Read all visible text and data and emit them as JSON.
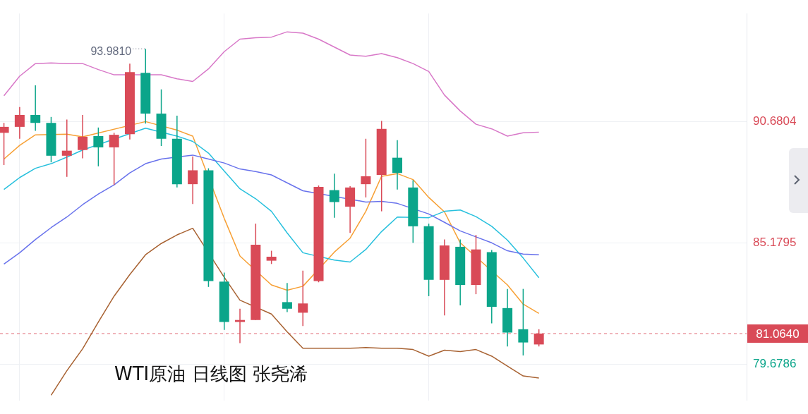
{
  "chart_data": {
    "type": "candlestick",
    "title": "WTI原油 日线图 张尧浠",
    "categories": [
      null,
      null,
      null,
      null,
      null,
      null,
      null,
      null,
      null,
      null,
      null,
      null,
      null,
      null,
      null,
      null,
      null,
      null,
      null,
      null,
      null,
      null,
      null,
      null,
      null,
      null,
      null,
      null,
      null,
      null,
      null,
      null,
      null,
      null,
      null
    ],
    "ylim": [
      78.03,
      95.58
    ],
    "yticks": [
      90.6804,
      85.1795,
      79.6786
    ],
    "grid": true,
    "series": [
      {
        "type": "line",
        "color": "#d878c8",
        "values": [
          91.85,
          92.74,
          93.31,
          93.34,
          93.31,
          93.31,
          93.04,
          92.8,
          null,
          null,
          92.8,
          92.62,
          92.5,
          93.07,
          93.85,
          94.42,
          94.48,
          94.51,
          94.75,
          94.69,
          94.42,
          94.06,
          93.7,
          93.64,
          93.76,
          93.58,
          93.31,
          92.95,
          91.88,
          91.16,
          90.56,
          90.35,
          90.02,
          90.17,
          90.2
        ]
      },
      {
        "type": "line",
        "color": "#6872ec",
        "values": [
          84.22,
          84.73,
          85.33,
          85.87,
          86.35,
          86.91,
          87.39,
          87.81,
          88.35,
          88.77,
          88.98,
          null,
          89.16,
          88.98,
          88.8,
          88.53,
          88.41,
          88.26,
          87.9,
          87.54,
          null,
          null,
          null,
          87.03,
          87.06,
          86.97,
          null,
          86.49,
          86.11,
          85.72,
          85.45,
          85.18,
          84.82,
          84.67,
          84.64
        ]
      },
      {
        "type": "line",
        "color": "#a86232",
        "values": [
          null,
          null,
          null,
          78.27,
          79.38,
          80.37,
          81.59,
          82.76,
          83.74,
          84.64,
          85.15,
          85.54,
          85.84,
          null,
          83.62,
          82.58,
          null,
          81.95,
          81.14,
          80.4,
          80.4,
          80.4,
          80.4,
          80.43,
          80.4,
          80.4,
          80.34,
          80.04,
          80.31,
          80.25,
          80.34,
          80.04,
          79.59,
          79.14,
          79.05
        ]
      },
      {
        "type": "line",
        "color": "#27c0dd",
        "values": [
          87.6,
          88.14,
          88.56,
          88.77,
          89.07,
          89.39,
          null,
          null,
          null,
          90.38,
          null,
          90.02,
          89.78,
          89.25,
          88.44,
          87.63,
          87.18,
          86.61,
          85.63,
          84.73,
          null,
          84.4,
          84.31,
          84.88,
          85.69,
          86.35,
          null,
          86.32,
          86.61,
          86.67,
          86.37,
          85.93,
          85.3,
          84.49,
          83.6
        ]
      },
      {
        "type": "line",
        "color": "#f7a035",
        "values": [
          88.98,
          89.6,
          90.08,
          null,
          90.11,
          89.99,
          null,
          null,
          null,
          90.68,
          null,
          90.29,
          90.02,
          null,
          86.29,
          84.58,
          null,
          83.27,
          83.03,
          83.21,
          null,
          84.76,
          85.39,
          86.61,
          88.2,
          88.32,
          88.05,
          87.24,
          86.58,
          85.18,
          null,
          null,
          83.27,
          82.4,
          81.98
        ]
      },
      {
        "type": "candlestick",
        "ohlc": [
          [
            90.17,
            90.62,
            88.71,
            90.44
          ],
          [
            90.44,
            91.34,
            89.9,
            90.98
          ],
          [
            90.98,
            92.32,
            90.26,
            90.62
          ],
          [
            90.62,
            90.89,
            88.83,
            89.13
          ],
          [
            89.13,
            90.77,
            88.17,
            89.36
          ],
          [
            89.39,
            90.98,
            89.01,
            89.99
          ],
          [
            90.02,
            90.41,
            88.65,
            89.51
          ],
          [
            89.51,
            90.17,
            87.81,
            90.08
          ],
          [
            90.11,
            93.31,
            89.87,
            92.92
          ],
          [
            92.89,
            93.981,
            90.59,
            91.04
          ],
          [
            91.04,
            92.14,
            89.57,
            89.9
          ],
          [
            89.9,
            90.95,
            87.69,
            87.84
          ],
          [
            87.84,
            89.1,
            86.94,
            88.47
          ],
          [
            88.47,
            88.56,
            83.18,
            83.45
          ],
          [
            83.42,
            83.83,
            81.23,
            81.59
          ],
          [
            81.59,
            82.19,
            80.63,
            81.68
          ],
          [
            81.68,
            86.05,
            81.68,
            85.09
          ],
          [
            84.37,
            84.82,
            84.22,
            84.55
          ],
          [
            82.49,
            83.36,
            82.04,
            82.19
          ],
          [
            82.01,
            83.92,
            81.41,
            82.43
          ],
          [
            83.45,
            87.78,
            83.39,
            87.72
          ],
          [
            87.57,
            88.32,
            86.32,
            87.03
          ],
          [
            86.82,
            87.75,
            85.63,
            87.69
          ],
          [
            87.84,
            89.9,
            87.24,
            88.2
          ],
          [
            88.26,
            90.71,
            86.61,
            90.35
          ],
          [
            89.04,
            89.84,
            87.6,
            88.35
          ],
          [
            87.69,
            88.02,
            85.18,
            85.93
          ],
          [
            85.93,
            86.05,
            82.76,
            83.5
          ],
          [
            83.5,
            85.33,
            81.89,
            85.06
          ],
          [
            85.0,
            85.33,
            82.34,
            83.27
          ],
          [
            83.27,
            85.54,
            82.85,
            84.88
          ],
          [
            84.76,
            84.85,
            81.53,
            82.28
          ],
          [
            82.22,
            83.09,
            80.48,
            81.11
          ],
          [
            81.26,
            83.09,
            80.07,
            80.66
          ],
          [
            80.57,
            81.26,
            80.48,
            81.064
          ]
        ],
        "colors": [
          "#d94a57",
          "#d94a57",
          "#0ba58a",
          "#0ba58a",
          "#d94a57",
          "#d94a57",
          "#0ba58a",
          "#d94a57",
          "#d94a57",
          "#0ba58a",
          "#0ba58a",
          "#0ba58a",
          "#d94a57",
          "#0ba58a",
          "#0ba58a",
          "#d94a57",
          "#d94a57",
          "#d94a57",
          "#0ba58a",
          "#d94a57",
          "#d94a57",
          "#0ba58a",
          "#d94a57",
          "#d94a57",
          "#d94a57",
          "#0ba58a",
          "#0ba58a",
          "#0ba58a",
          "#d94a57",
          "#0ba58a",
          "#d94a57",
          "#0ba58a",
          "#0ba58a",
          "#0ba58a",
          "#d94a57"
        ]
      }
    ],
    "ref_lines": [
      {
        "axis": "y",
        "value": 81.064,
        "label": "81.0640",
        "color": "#d94a57",
        "line_style": "dashed"
      }
    ],
    "annotations": [
      "93.9810"
    ]
  }
}
